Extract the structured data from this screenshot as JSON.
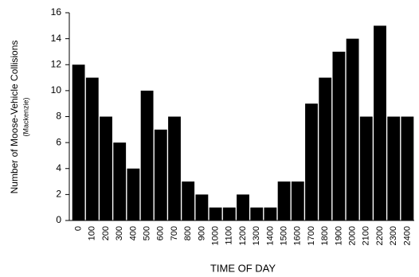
{
  "chart_data": {
    "type": "bar",
    "y_label": "Number of Moose-Vehicle Collisions",
    "y_sublabel": "(Mackenzie)",
    "x_label": "TIME OF DAY",
    "categories": [
      "0",
      "100",
      "200",
      "300",
      "400",
      "500",
      "600",
      "700",
      "800",
      "900",
      "1000",
      "1100",
      "1200",
      "1300",
      "1400",
      "1500",
      "1600",
      "1700",
      "1800",
      "1900",
      "2000",
      "2100",
      "2200",
      "2300",
      "2400"
    ],
    "values": [
      12,
      11,
      8,
      6,
      4,
      10,
      7,
      8,
      3,
      2,
      1,
      1,
      2,
      1,
      1,
      3,
      3,
      9,
      11,
      13,
      14,
      8,
      15,
      8,
      8
    ],
    "color": "#000000",
    "ylim": [
      0,
      16
    ],
    "yticks": [
      0,
      2,
      4,
      6,
      8,
      10,
      12,
      14,
      16
    ],
    "grid": false
  }
}
